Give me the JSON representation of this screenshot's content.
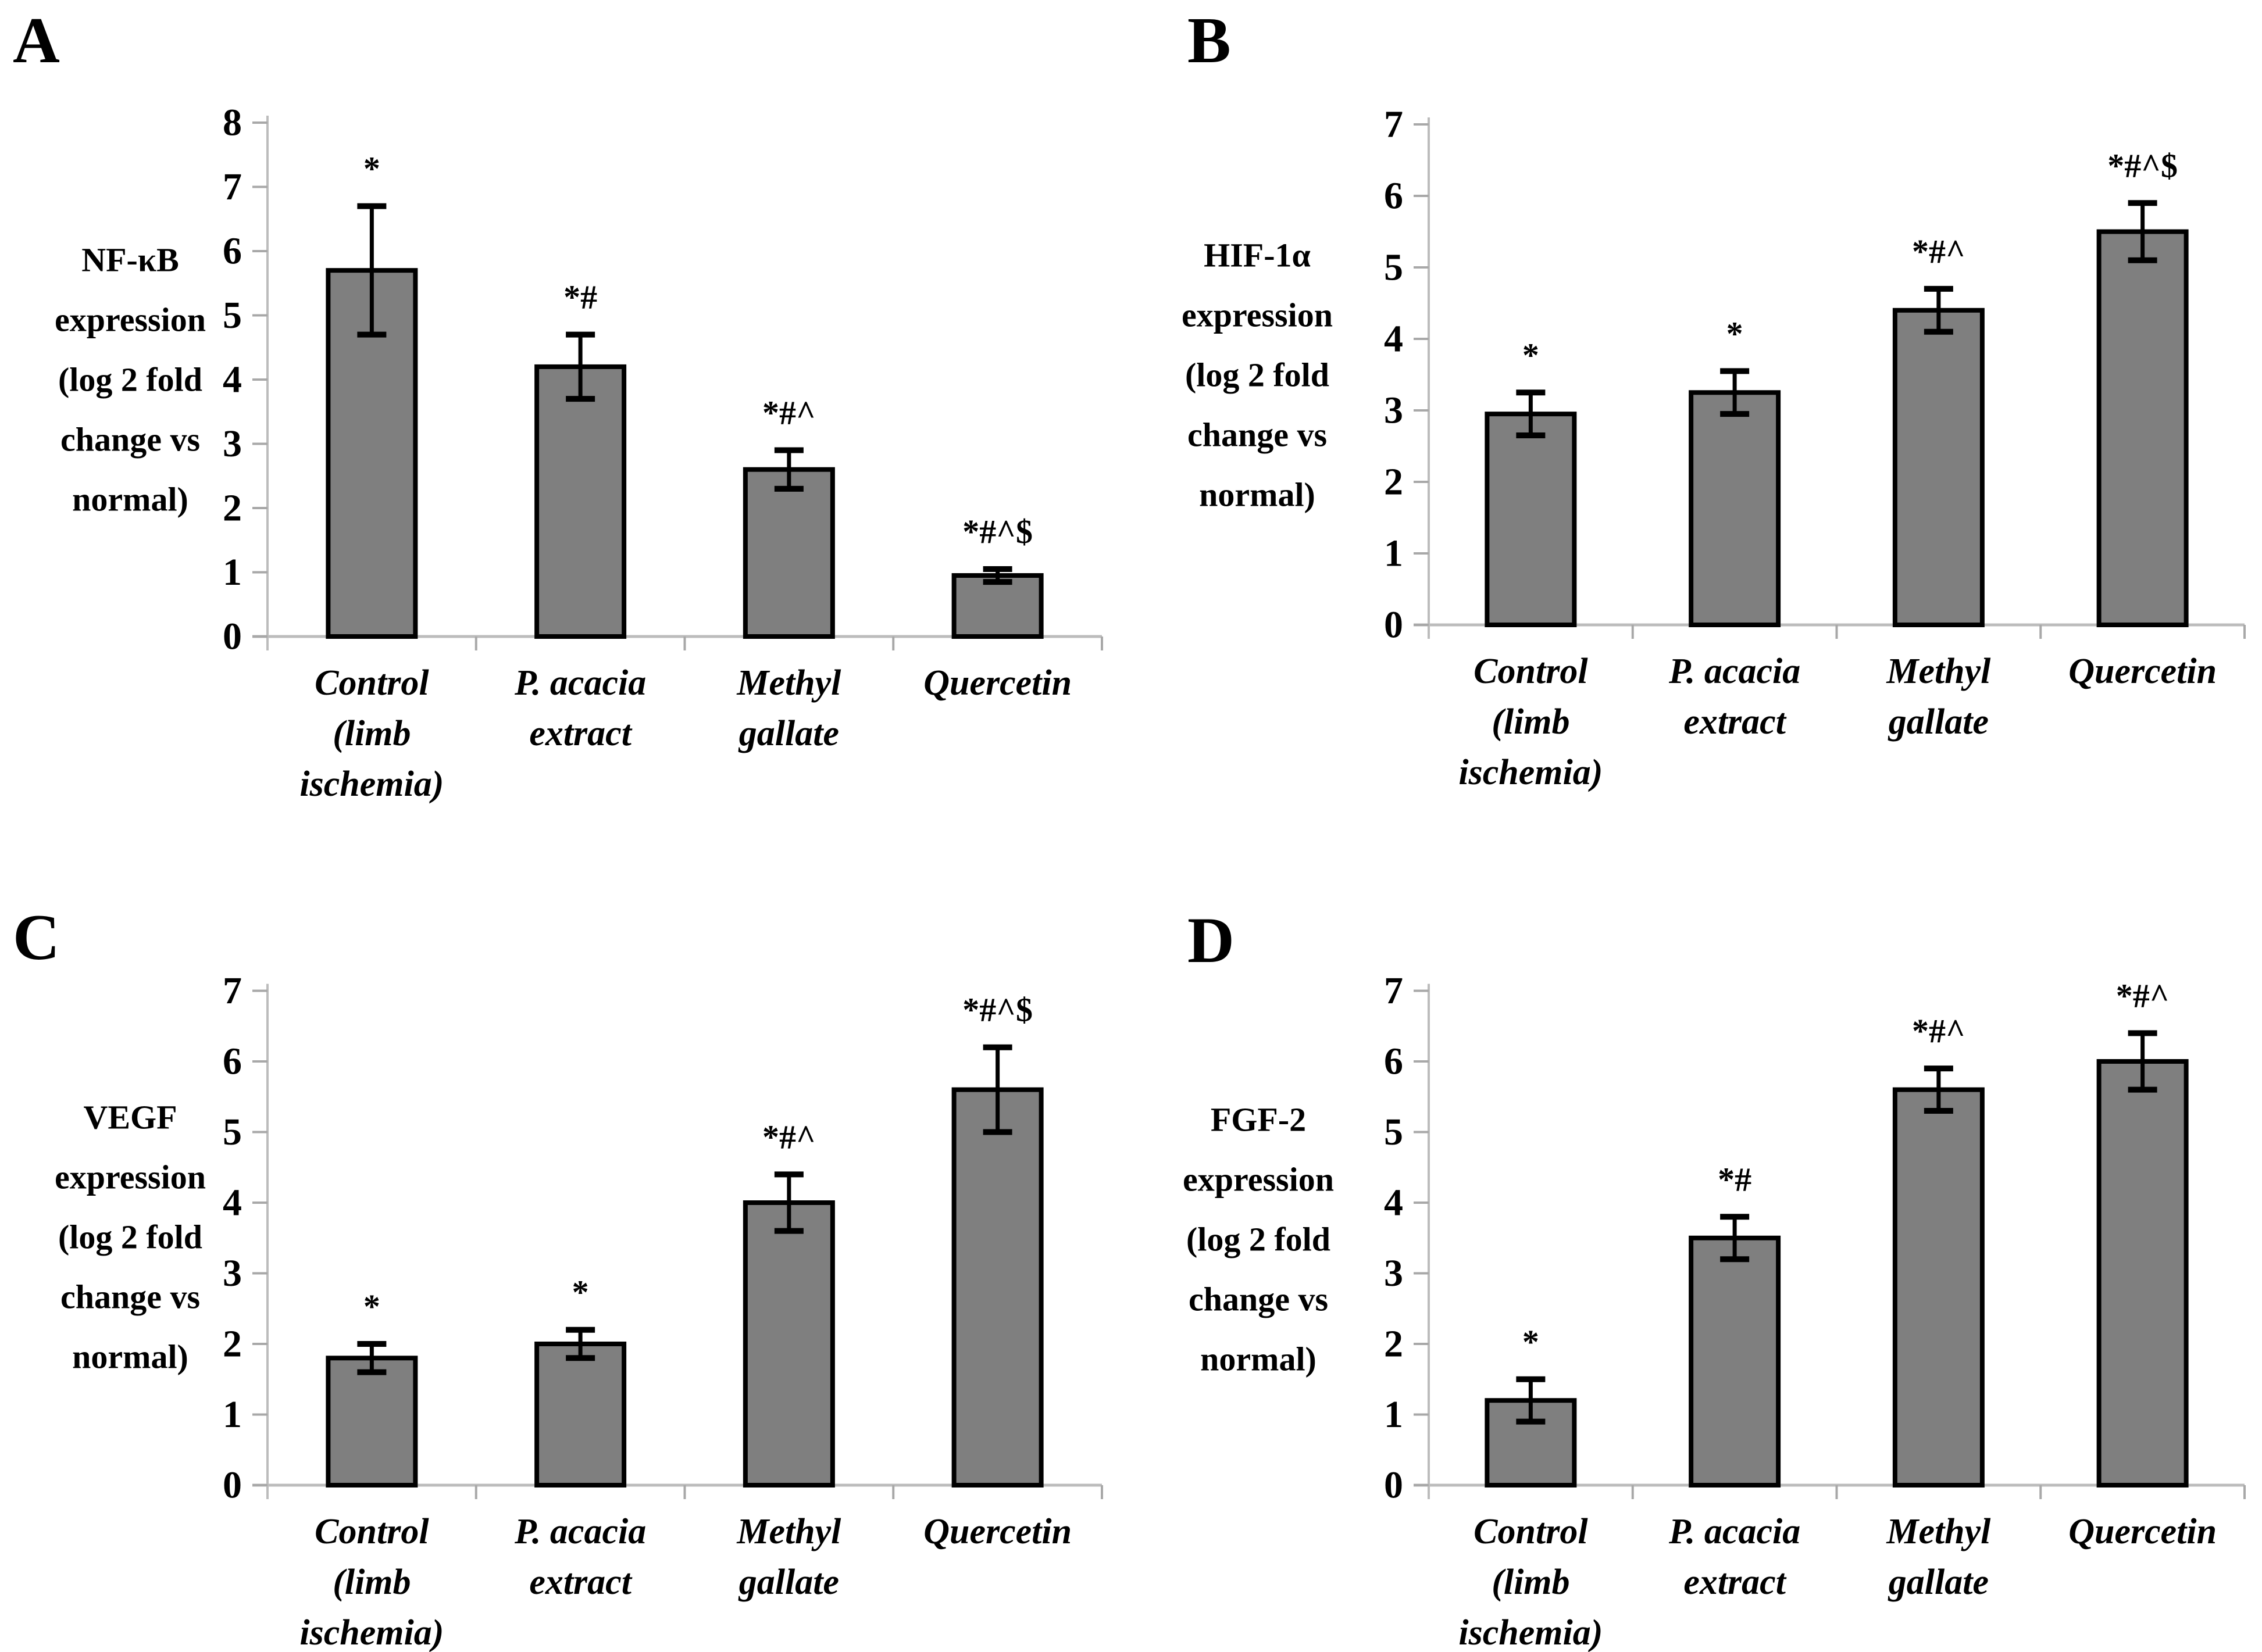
{
  "colors": {
    "background": "#ffffff",
    "bar_fill": "#7f7f7f",
    "bar_border": "#000000",
    "axis": "#bcbcbc",
    "tick": "#a8a8a8",
    "error_bar": "#000000",
    "text": "#000000"
  },
  "chart_data": [
    {
      "panel_label": "A",
      "type": "bar",
      "ylabel": "NF-κB expression (log 2 fold change vs normal)",
      "ylabel_lines": "NF-κB\nexpression\n(log 2 fold\nchange vs\nnormal)",
      "categories": [
        "Control (limb ischemia)",
        "P. acacia extract",
        "Methyl gallate",
        "Quercetin"
      ],
      "category_lines": [
        [
          "Control",
          "(limb",
          "ischemia)"
        ],
        [
          "P. acacia",
          "extract"
        ],
        [
          "Methyl",
          "gallate"
        ],
        [
          "Quercetin"
        ]
      ],
      "values": [
        5.7,
        4.2,
        2.6,
        0.95
      ],
      "errors": [
        1.0,
        0.5,
        0.3,
        0.1
      ],
      "annotations": [
        "*",
        "*#",
        "*#^",
        "*#^$"
      ],
      "ylim": [
        0,
        8
      ],
      "ytick_step": 1,
      "grid": false,
      "legend": null
    },
    {
      "panel_label": "B",
      "type": "bar",
      "ylabel": "HIF-1α expression (log 2 fold change vs normal)",
      "ylabel_lines": "HIF-1α\nexpression\n(log 2 fold\nchange vs\nnormal)",
      "categories": [
        "Control (limb ischemia)",
        "P. acacia extract",
        "Methyl gallate",
        "Quercetin"
      ],
      "category_lines": [
        [
          "Control",
          "(limb",
          "ischemia)"
        ],
        [
          "P. acacia",
          "extract"
        ],
        [
          "Methyl",
          "gallate"
        ],
        [
          "Quercetin"
        ]
      ],
      "values": [
        2.95,
        3.25,
        4.4,
        5.5
      ],
      "errors": [
        0.3,
        0.3,
        0.3,
        0.4
      ],
      "annotations": [
        "*",
        "*",
        "*#^",
        "*#^$"
      ],
      "ylim": [
        0,
        7
      ],
      "ytick_step": 1,
      "grid": false,
      "legend": null
    },
    {
      "panel_label": "C",
      "type": "bar",
      "ylabel": "VEGF expression (log 2 fold change vs normal)",
      "ylabel_lines": "VEGF\nexpression\n(log 2 fold\nchange vs\nnormal)",
      "categories": [
        "Control (limb ischemia)",
        "P. acacia extract",
        "Methyl gallate",
        "Quercetin"
      ],
      "category_lines": [
        [
          "Control",
          "(limb",
          "ischemia)"
        ],
        [
          "P. acacia",
          "extract"
        ],
        [
          "Methyl",
          "gallate"
        ],
        [
          "Quercetin"
        ]
      ],
      "values": [
        1.8,
        2.0,
        4.0,
        5.6
      ],
      "errors": [
        0.2,
        0.2,
        0.4,
        0.6
      ],
      "annotations": [
        "*",
        "*",
        "*#^",
        "*#^$"
      ],
      "ylim": [
        0,
        7
      ],
      "ytick_step": 1,
      "grid": false,
      "legend": null
    },
    {
      "panel_label": "D",
      "type": "bar",
      "ylabel": "FGF-2 expression (log 2 fold change vs normal)",
      "ylabel_lines": "FGF-2\nexpression\n(log 2 fold\nchange vs\nnormal)",
      "categories": [
        "Control (limb ischemia)",
        "P. acacia extract",
        "Methyl gallate",
        "Quercetin"
      ],
      "category_lines": [
        [
          "Control",
          "(limb",
          "ischemia)"
        ],
        [
          "P. acacia",
          "extract"
        ],
        [
          "Methyl",
          "gallate"
        ],
        [
          "Quercetin"
        ]
      ],
      "values": [
        1.2,
        3.5,
        5.6,
        6.0
      ],
      "errors": [
        0.3,
        0.3,
        0.3,
        0.4
      ],
      "annotations": [
        "*",
        "*#",
        "*#^",
        "*#^"
      ],
      "ylim": [
        0,
        7
      ],
      "ytick_step": 1,
      "grid": false,
      "legend": null
    }
  ]
}
